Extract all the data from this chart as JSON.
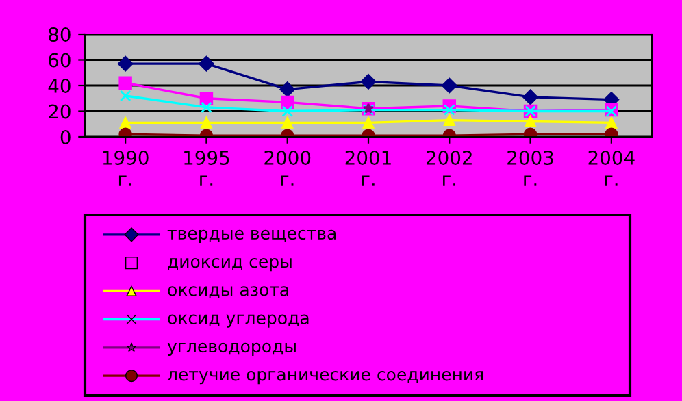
{
  "chart_data": {
    "type": "line",
    "categories": [
      "1990\nг.",
      "1995\nг.",
      "2000\nг.",
      "2001\nг.",
      "2002\nг.",
      "2003\nг.",
      "2004\nг."
    ],
    "ylim": [
      0,
      80
    ],
    "yticks": [
      0,
      20,
      40,
      60,
      80
    ],
    "grid": "y",
    "legend": "bottom",
    "series": [
      {
        "name": "твердые вещества",
        "color": "#000080",
        "marker": "diamond",
        "values": [
          57,
          57,
          37,
          43,
          40,
          31,
          29
        ]
      },
      {
        "name": "диоксид серы",
        "color": "#ff00ff",
        "marker": "square",
        "values": [
          42,
          30,
          27,
          22,
          24,
          20,
          21
        ]
      },
      {
        "name": "оксиды азота",
        "color": "#ffff00",
        "marker": "triangle",
        "values": [
          11,
          11,
          11,
          11,
          13,
          12,
          11
        ]
      },
      {
        "name": "оксид углерода",
        "color": "#00ffff",
        "marker": "cross",
        "values": [
          32,
          23,
          20,
          21,
          21,
          20,
          20
        ]
      },
      {
        "name": "углеводороды",
        "color": "#800080",
        "marker": "star",
        "values": [
          null,
          null,
          null,
          22,
          null,
          null,
          null
        ]
      },
      {
        "name": "летучие органические соединения",
        "color": "#800000",
        "marker": "circle",
        "values": [
          2,
          1,
          1,
          1,
          1,
          2,
          2
        ]
      }
    ]
  }
}
